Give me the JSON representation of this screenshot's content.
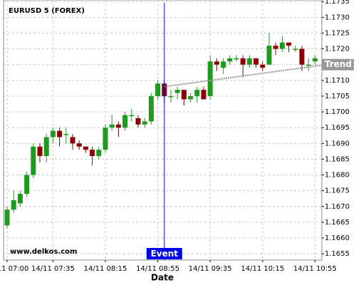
{
  "chart_data": {
    "type": "candlestick",
    "title": "EURUSD 5 (FOREX)",
    "x_label": "Date",
    "watermark": "www.delkos.com",
    "categories": [
      "14/11 07:00",
      null,
      null,
      null,
      null,
      null,
      null,
      "14/11 07:35",
      null,
      null,
      null,
      null,
      null,
      null,
      null,
      "14/11 08:15",
      null,
      null,
      null,
      null,
      null,
      null,
      null,
      "14/11 08:55",
      null,
      null,
      null,
      null,
      null,
      null,
      null,
      "14/11 09:35",
      null,
      null,
      null,
      null,
      null,
      null,
      null,
      "14/11 10:15",
      null,
      null,
      null,
      null,
      null,
      null,
      null,
      "14/11 10:55"
    ],
    "open": [
      1.1664,
      1.1669,
      1.1671,
      1.1674,
      1.168,
      1.1689,
      1.1686,
      1.1692,
      1.1694,
      1.1693,
      1.1692,
      1.169,
      1.1689,
      1.1688,
      1.1686,
      1.1688,
      1.1695,
      1.1696,
      1.1695,
      1.1699,
      1.1698,
      1.1696,
      1.1697,
      1.1705,
      1.1709,
      1.1705,
      1.1706,
      1.1707,
      1.1704,
      1.1705,
      1.1707,
      1.1705,
      1.1716,
      1.1714,
      1.1716,
      1.1717,
      1.1717,
      1.1715,
      1.1717,
      1.1715,
      1.1715,
      1.1721,
      1.172,
      1.1722,
      1.172,
      1.172,
      1.1715,
      1.1716
    ],
    "high": [
      1.167,
      1.1675,
      1.1675,
      1.1681,
      1.169,
      1.169,
      1.1693,
      1.1695,
      1.1695,
      1.1695,
      1.1693,
      1.1691,
      1.1689,
      1.1689,
      1.1689,
      1.1696,
      1.1699,
      1.1697,
      1.17,
      1.1701,
      1.1699,
      1.1698,
      1.1706,
      1.171,
      1.171,
      1.1707,
      1.1708,
      1.1707,
      1.1706,
      1.1708,
      1.1708,
      1.1718,
      1.1717,
      1.1717,
      1.1718,
      1.1718,
      1.1718,
      1.1718,
      1.1717,
      1.1716,
      1.1725,
      1.1722,
      1.1724,
      1.1722,
      1.1721,
      1.1721,
      1.1717,
      1.1718
    ],
    "low": [
      1.1663,
      1.1668,
      1.167,
      1.1673,
      1.1679,
      1.1684,
      1.1684,
      1.169,
      1.1689,
      1.169,
      1.1688,
      1.1688,
      1.1687,
      1.1683,
      1.1685,
      1.1687,
      1.1694,
      1.1692,
      1.1694,
      1.1697,
      1.1695,
      1.1695,
      1.1696,
      1.1704,
      1.1703,
      1.1703,
      1.1704,
      1.1702,
      1.1703,
      1.1703,
      1.1704,
      1.1704,
      1.1713,
      1.1712,
      1.1715,
      1.1716,
      1.1711,
      1.1714,
      1.1714,
      1.1713,
      1.1715,
      1.1718,
      1.1719,
      1.1719,
      1.1719,
      1.1713,
      1.1713,
      1.1715
    ],
    "close": [
      1.1669,
      1.1672,
      1.1674,
      1.168,
      1.1689,
      1.1686,
      1.1692,
      1.1694,
      1.1692,
      1.1693,
      1.169,
      1.1689,
      1.1688,
      1.1686,
      1.1688,
      1.1695,
      1.1696,
      1.1695,
      1.1699,
      1.1699,
      1.1696,
      1.1697,
      1.1705,
      1.1709,
      1.1705,
      1.1705,
      1.1707,
      1.1704,
      1.1705,
      1.1707,
      1.1704,
      1.1716,
      1.1715,
      1.1716,
      1.1717,
      1.1717,
      1.1715,
      1.1717,
      1.1715,
      1.1714,
      1.1721,
      1.172,
      1.1722,
      1.1721,
      1.172,
      1.1715,
      1.1715,
      1.1717
    ],
    "up_color": "#1f9a1f",
    "down_color": "#8b0000",
    "ylim": [
      1.1653,
      1.17355
    ],
    "yticks": [
      1.1655,
      {
        "value": 1.166,
        "label": "1.1660"
      },
      1.1665,
      {
        "value": 1.167,
        "label": "1.1670"
      },
      1.1675,
      {
        "value": 1.168,
        "label": "1.1680"
      },
      1.1685,
      {
        "value": 1.169,
        "label": "1.1690"
      },
      1.1695,
      {
        "value": 1.17,
        "label": "1.1700"
      },
      1.1705,
      {
        "value": 1.171,
        "label": "1.1710"
      },
      1.1715,
      {
        "value": 1.172,
        "label": "1.1720"
      },
      1.1725,
      {
        "value": 1.173,
        "label": "1.1730"
      },
      1.1735
    ],
    "grid": true,
    "event": {
      "label": "Event",
      "index": 24,
      "color": "#0000ee"
    },
    "trend": {
      "label": "Trend",
      "x": [
        24,
        48.7
      ],
      "y": [
        1.1708,
        1.1715
      ],
      "color": "#999999"
    }
  }
}
